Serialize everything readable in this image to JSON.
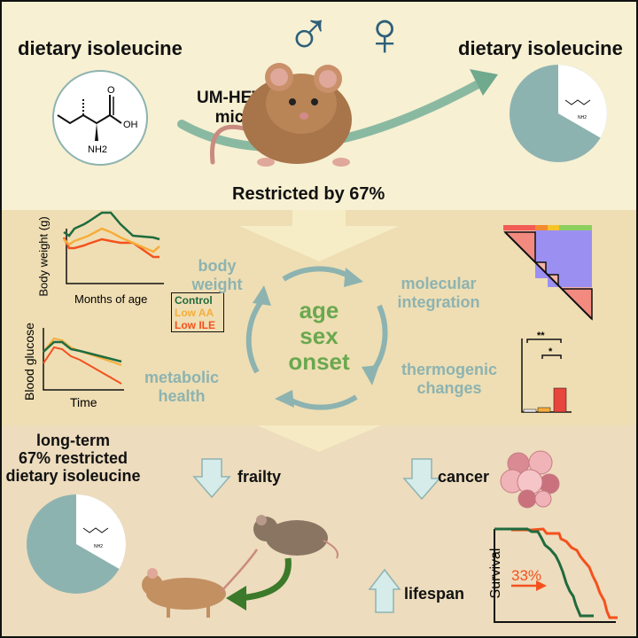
{
  "top": {
    "left_label": "dietary isoleucine",
    "right_label": "dietary isoleucine",
    "strain": "UM-HET3",
    "strain_suffix": "mice",
    "restriction": "Restricted by 67%",
    "molecule_labels": {
      "oxygen": "O",
      "hydroxyl": "OH",
      "amine": "NH2"
    },
    "sex_symbols": [
      "♂",
      "♀"
    ],
    "restricted_fraction": 0.67
  },
  "middle": {
    "body_weight_chart": {
      "ylabel": "Body weight (g)",
      "xlabel": "Months of age"
    },
    "glucose_chart": {
      "ylabel": "Blood glucose",
      "xlabel": "Time"
    },
    "legend": [
      {
        "label": "Control",
        "color": "#1f6b3f"
      },
      {
        "label": "Low AA",
        "color": "#f6ad3b"
      },
      {
        "label": "Low ILE",
        "color": "#f4511e"
      }
    ],
    "outcomes": {
      "body_weight": [
        "body",
        "weight"
      ],
      "molecular": [
        "molecular",
        "integration"
      ],
      "metabolic": [
        "metabolic",
        "health"
      ],
      "thermogenic": [
        "thermogenic",
        "changes"
      ]
    },
    "cycle": [
      "age",
      "sex",
      "onset"
    ],
    "significance": [
      "**",
      "*"
    ]
  },
  "bottom": {
    "title": [
      "long-term",
      "67% restricted",
      "dietary isoleucine"
    ],
    "frailty": "frailty",
    "cancer": "cancer",
    "lifespan": "lifespan",
    "survival_label": "Survival",
    "lifespan_gain": "33%"
  },
  "colors": {
    "teal": "#8db3b1",
    "green": "#1f6b3f",
    "orange": "#f4511e",
    "sex_symbol": "#2e607a",
    "arrow_fill": "#d6ecea"
  }
}
